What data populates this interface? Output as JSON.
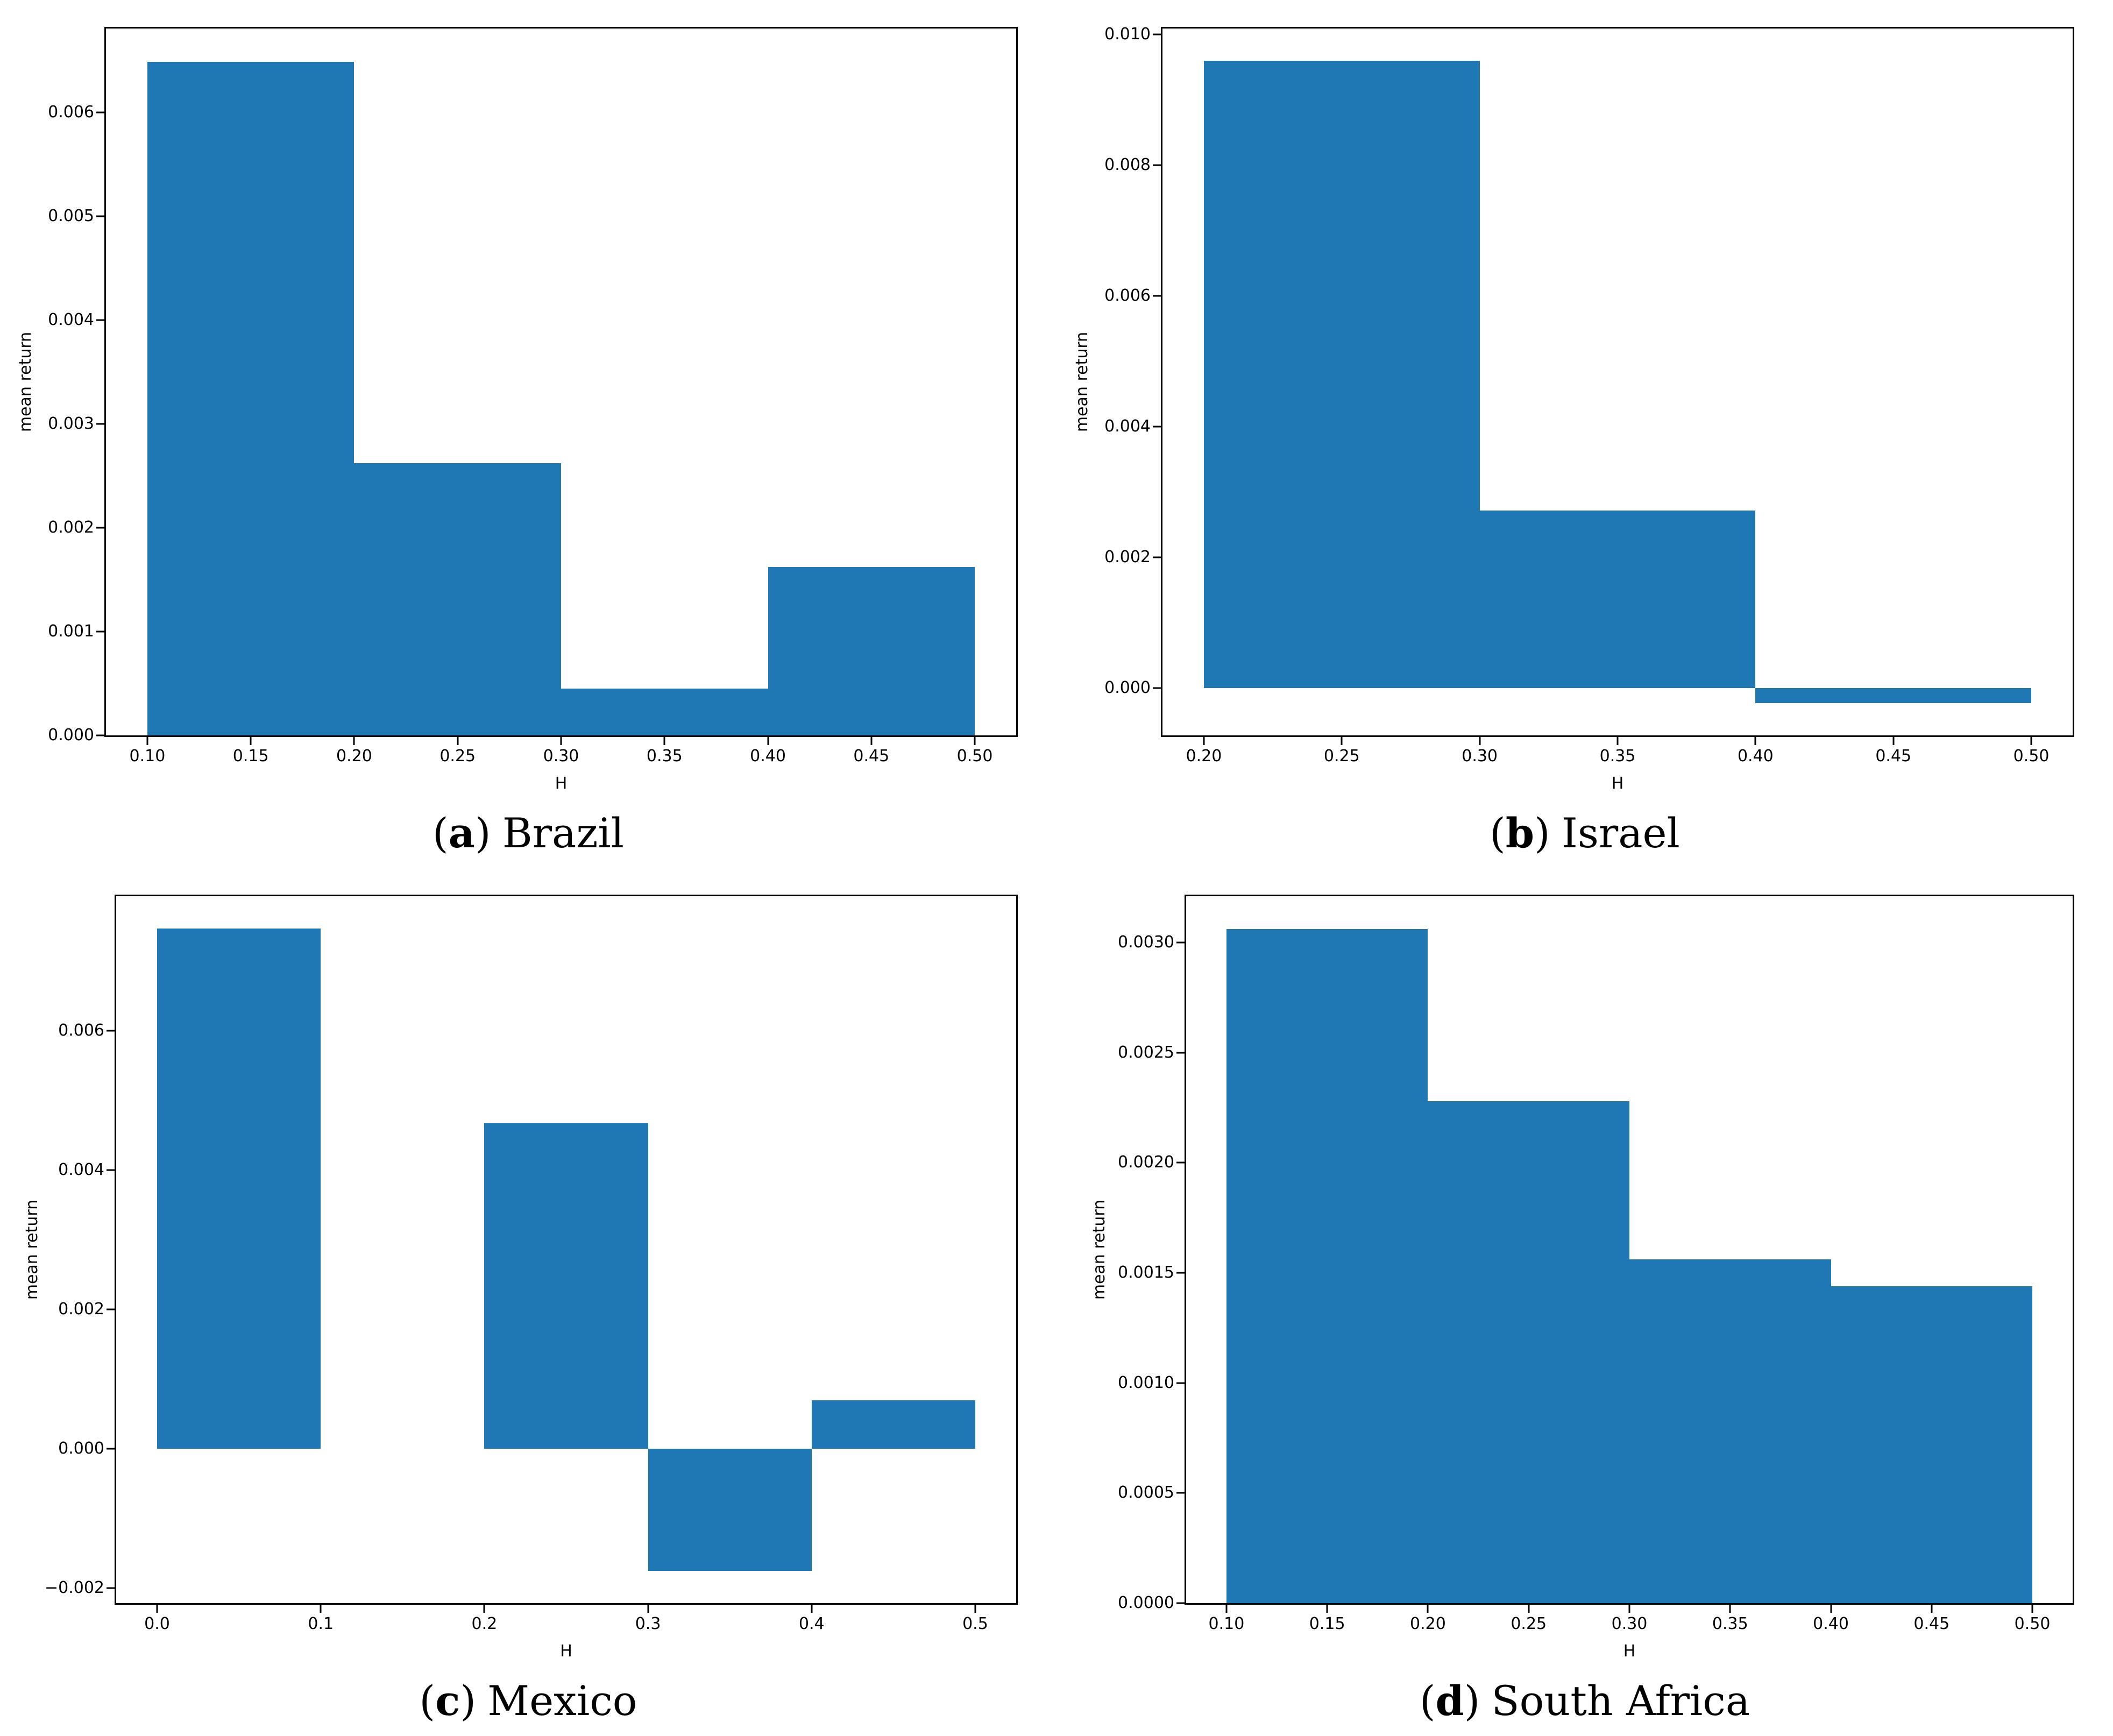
{
  "colors": {
    "bar": "#1f77b4",
    "axis": "#000000",
    "text": "#000000",
    "background": "#ffffff"
  },
  "chart_data": [
    {
      "type": "bar",
      "panel": "a",
      "caption": {
        "open": "(",
        "letter": "a",
        "close": ")",
        "text": "Brazil"
      },
      "title": "(a) Brazil",
      "xlabel": "H",
      "ylabel": "mean return",
      "bin_edges": [
        0.1,
        0.2,
        0.3,
        0.4,
        0.5
      ],
      "values": [
        0.00649,
        0.00262,
        0.00045,
        0.00162
      ],
      "xlim": [
        0.08,
        0.52
      ],
      "ylim": [
        0,
        0.00681
      ],
      "x_ticks": [
        0.1,
        0.15,
        0.2,
        0.25,
        0.3,
        0.35,
        0.4,
        0.45,
        0.5
      ],
      "x_tick_labels": [
        "0.10",
        "0.15",
        "0.20",
        "0.25",
        "0.30",
        "0.35",
        "0.40",
        "0.45",
        "0.50"
      ],
      "y_ticks": [
        0,
        0.001,
        0.002,
        0.003,
        0.004,
        0.005,
        0.006
      ],
      "y_tick_labels": [
        "0.000",
        "0.001",
        "0.002",
        "0.003",
        "0.004",
        "0.005",
        "0.006"
      ],
      "grid": false,
      "legend": null
    },
    {
      "type": "bar",
      "panel": "b",
      "caption": {
        "open": "(",
        "letter": "b",
        "close": ")",
        "text": "Israel"
      },
      "title": "(b) Israel",
      "xlabel": "H",
      "ylabel": "mean return",
      "bin_edges": [
        0.2,
        0.3,
        0.4,
        0.5
      ],
      "values": [
        0.0096,
        0.00272,
        -0.00023
      ],
      "xlim": [
        0.185,
        0.515
      ],
      "ylim": [
        -0.00072,
        0.01009
      ],
      "x_ticks": [
        0.2,
        0.25,
        0.3,
        0.35,
        0.4,
        0.45,
        0.5
      ],
      "x_tick_labels": [
        "0.20",
        "0.25",
        "0.30",
        "0.35",
        "0.40",
        "0.45",
        "0.50"
      ],
      "y_ticks": [
        0,
        0.002,
        0.004,
        0.006,
        0.008,
        0.01
      ],
      "y_tick_labels": [
        "0.000",
        "0.002",
        "0.004",
        "0.006",
        "0.008",
        "0.010"
      ],
      "grid": false,
      "legend": null
    },
    {
      "type": "bar",
      "panel": "c",
      "caption": {
        "open": "(",
        "letter": "c",
        "close": ")",
        "text": "Mexico"
      },
      "title": "(c) Mexico",
      "xlabel": "H",
      "ylabel": "mean return",
      "bin_edges": [
        0.0,
        0.1,
        0.2,
        0.3,
        0.4,
        0.5
      ],
      "values": [
        0.00747,
        0,
        0.00467,
        -0.00176,
        0.00069
      ],
      "xlim": [
        -0.025,
        0.525
      ],
      "ylim": [
        -0.00222,
        0.00793
      ],
      "x_ticks": [
        0.0,
        0.1,
        0.2,
        0.3,
        0.4,
        0.5
      ],
      "x_tick_labels": [
        "0.0",
        "0.1",
        "0.2",
        "0.3",
        "0.4",
        "0.5"
      ],
      "y_ticks": [
        -0.002,
        0,
        0.002,
        0.004,
        0.006
      ],
      "y_tick_labels": [
        "−0.002",
        "0.000",
        "0.002",
        "0.004",
        "0.006"
      ],
      "grid": false,
      "legend": null
    },
    {
      "type": "bar",
      "panel": "d",
      "caption": {
        "open": "(",
        "letter": "d",
        "close": ")",
        "text": "South Africa"
      },
      "title": "(d) South Africa",
      "xlabel": "H",
      "ylabel": "mean return",
      "bin_edges": [
        0.1,
        0.2,
        0.3,
        0.4,
        0.5
      ],
      "values": [
        0.00306,
        0.00228,
        0.00156,
        0.00144
      ],
      "xlim": [
        0.08,
        0.52
      ],
      "ylim": [
        0,
        0.00321
      ],
      "x_ticks": [
        0.1,
        0.15,
        0.2,
        0.25,
        0.3,
        0.35,
        0.4,
        0.45,
        0.5
      ],
      "x_tick_labels": [
        "0.10",
        "0.15",
        "0.20",
        "0.25",
        "0.30",
        "0.35",
        "0.40",
        "0.45",
        "0.50"
      ],
      "y_ticks": [
        0,
        0.0005,
        0.001,
        0.0015,
        0.002,
        0.0025,
        0.003
      ],
      "y_tick_labels": [
        "0.0000",
        "0.0005",
        "0.0010",
        "0.0015",
        "0.0020",
        "0.0025",
        "0.0030"
      ],
      "grid": false,
      "legend": null
    }
  ]
}
